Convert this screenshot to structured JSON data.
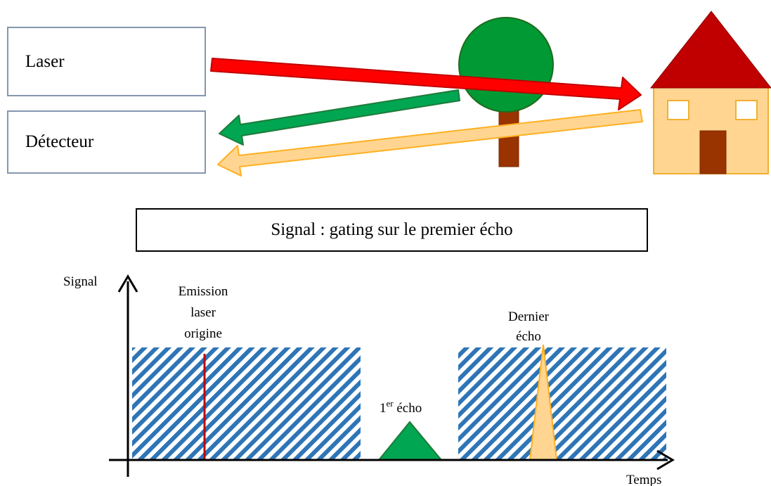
{
  "scene": {
    "laser_label": "Laser",
    "detector_label": "Détecteur",
    "colors": {
      "laser_beam": "#ff0000",
      "first_echo": "#00a651",
      "last_echo": "#ffd591",
      "tree_crown": "#009933",
      "tree_trunk": "#993300",
      "house_roof": "#c00000",
      "house_wall": "#ffd591"
    },
    "icons": [
      "tree-icon",
      "house-icon"
    ]
  },
  "signal_title": "Signal : gating sur le premier écho",
  "timing": {
    "y_axis_label": "Signal",
    "x_axis_label": "Temps",
    "emission_label": [
      "Emission",
      "laser",
      "origine"
    ],
    "first_echo_label": {
      "base": "1",
      "sup": "er",
      "rest": " écho"
    },
    "last_echo_label": [
      "Dernier",
      "écho"
    ],
    "gate_pattern_color": "#2e75b6"
  }
}
